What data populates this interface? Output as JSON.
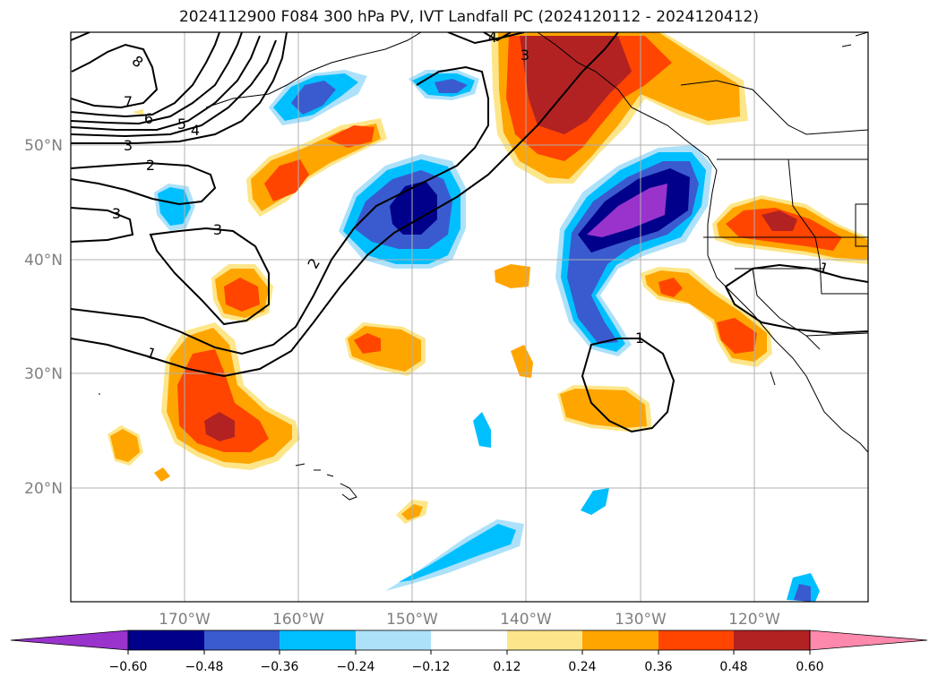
{
  "title": "2024112900 F084 300 hPa PV, IVT Landfall PC (2024120112 - 2024120412)",
  "map": {
    "lon_range": [
      -180,
      -110
    ],
    "lat_range": [
      10,
      60
    ],
    "lat_labels": [
      "50°N",
      "40°N",
      "30°N",
      "20°N"
    ],
    "lon_labels": [
      "170°W",
      "160°W",
      "150°W",
      "140°W",
      "130°W",
      "120°W"
    ],
    "contour_labels": [
      "8",
      "7",
      "6",
      "5",
      "4",
      "3",
      "2",
      "3",
      "3",
      "2",
      "1",
      "1",
      "1",
      "4",
      "3"
    ]
  },
  "colorbar": {
    "ticks": [
      "−0.60",
      "−0.48",
      "−0.36",
      "−0.24",
      "−0.12",
      "0.12",
      "0.24",
      "0.36",
      "0.48",
      "0.60"
    ],
    "colors": [
      "#9933cc",
      "#00008b",
      "#3a5bcf",
      "#00bfff",
      "#ade1fa",
      "#ffffff",
      "#fde68a",
      "#ffa500",
      "#ff4500",
      "#b22222",
      "#ff89ad"
    ]
  }
}
